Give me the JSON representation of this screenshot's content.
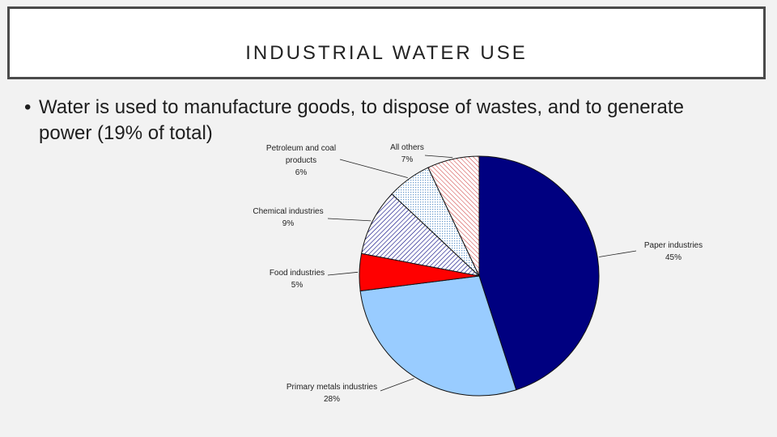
{
  "slide": {
    "title": "INDUSTRIAL WATER USE",
    "bullet_marker": "•",
    "bullet_text": "Water is used to manufacture goods, to dispose of wastes, and to generate power (19% of total)"
  },
  "chart_data": {
    "type": "pie",
    "title": "",
    "start_angle_deg": 0,
    "direction": "clockwise",
    "slices": [
      {
        "label_lines": [
          "Paper industries"
        ],
        "pct_label": "45%",
        "value": 45,
        "fill": "solid",
        "color": "#000080"
      },
      {
        "label_lines": [
          "Primary metals industries"
        ],
        "pct_label": "28%",
        "value": 28,
        "fill": "solid",
        "color": "#99ccff"
      },
      {
        "label_lines": [
          "Food industries"
        ],
        "pct_label": "5%",
        "value": 5,
        "fill": "solid",
        "color": "#ff0000"
      },
      {
        "label_lines": [
          "Chemical industries"
        ],
        "pct_label": "9%",
        "value": 9,
        "fill": "hatch-navy",
        "color": "#000080"
      },
      {
        "label_lines": [
          "Petroleum and coal",
          "products"
        ],
        "pct_label": "6%",
        "value": 6,
        "fill": "dots-blue",
        "color": "#6699cc"
      },
      {
        "label_lines": [
          "All others"
        ],
        "pct_label": "7%",
        "value": 7,
        "fill": "hatch-red",
        "color": "#cc3333"
      }
    ]
  }
}
